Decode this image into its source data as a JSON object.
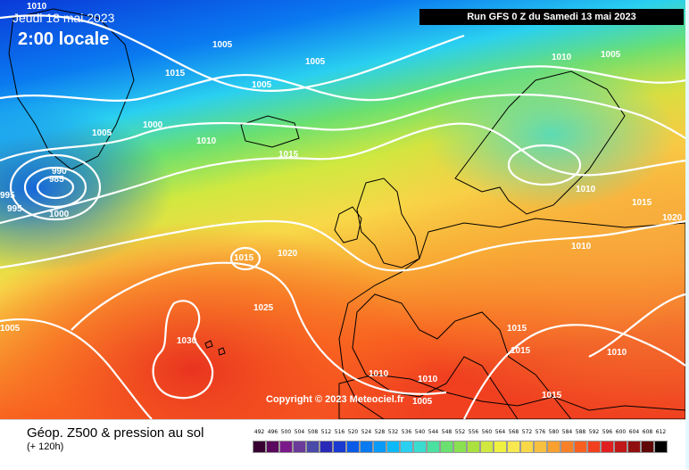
{
  "header": {
    "date": "Jeudi 18 mai 2023",
    "time": "2:00 locale",
    "run": "Run GFS 0 Z du Samedi 13 mai 2023"
  },
  "map": {
    "copyright": "Copyright © 2023 Meteociel.fr",
    "isobar_labels": [
      "1010",
      "1005",
      "1005",
      "1015",
      "1005",
      "1010",
      "1005",
      "1005",
      "1000",
      "990",
      "985",
      "995",
      "995",
      "1000",
      "1010",
      "1015",
      "1010",
      "1015",
      "1020",
      "1015",
      "1025",
      "1030",
      "1005",
      "1020",
      "1010",
      "1015",
      "1015",
      "1010",
      "1010",
      "1010",
      "1005",
      "1015"
    ]
  },
  "footer": {
    "title": "Géop. Z500 & pression au sol",
    "subtitle": "(+ 120h)"
  },
  "legend": {
    "labels": [
      "492",
      "496",
      "500",
      "504",
      "508",
      "512",
      "516",
      "520",
      "524",
      "528",
      "532",
      "536",
      "540",
      "544",
      "548",
      "552",
      "556",
      "560",
      "564",
      "568",
      "572",
      "576",
      "580",
      "584",
      "588",
      "592",
      "596",
      "600",
      "604",
      "608",
      "612"
    ],
    "colors": [
      "#380032",
      "#5a0a5e",
      "#7a1a8a",
      "#6b3b9a",
      "#4a4aa8",
      "#2a2ab8",
      "#1a3ad0",
      "#0a5ae8",
      "#0a7af0",
      "#0a9af8",
      "#0abaf8",
      "#2ad0f0",
      "#3adcd0",
      "#4ae0a0",
      "#6ae070",
      "#8ae050",
      "#aae040",
      "#d0e840",
      "#f0f040",
      "#f8e850",
      "#f8d848",
      "#f8c040",
      "#f8a030",
      "#f88028",
      "#f86020",
      "#f04020",
      "#e02020",
      "#c01818",
      "#901010",
      "#600808",
      "#000000"
    ]
  },
  "colors": {
    "isobar": "#ffffff",
    "ocean_outline": "#000000"
  }
}
